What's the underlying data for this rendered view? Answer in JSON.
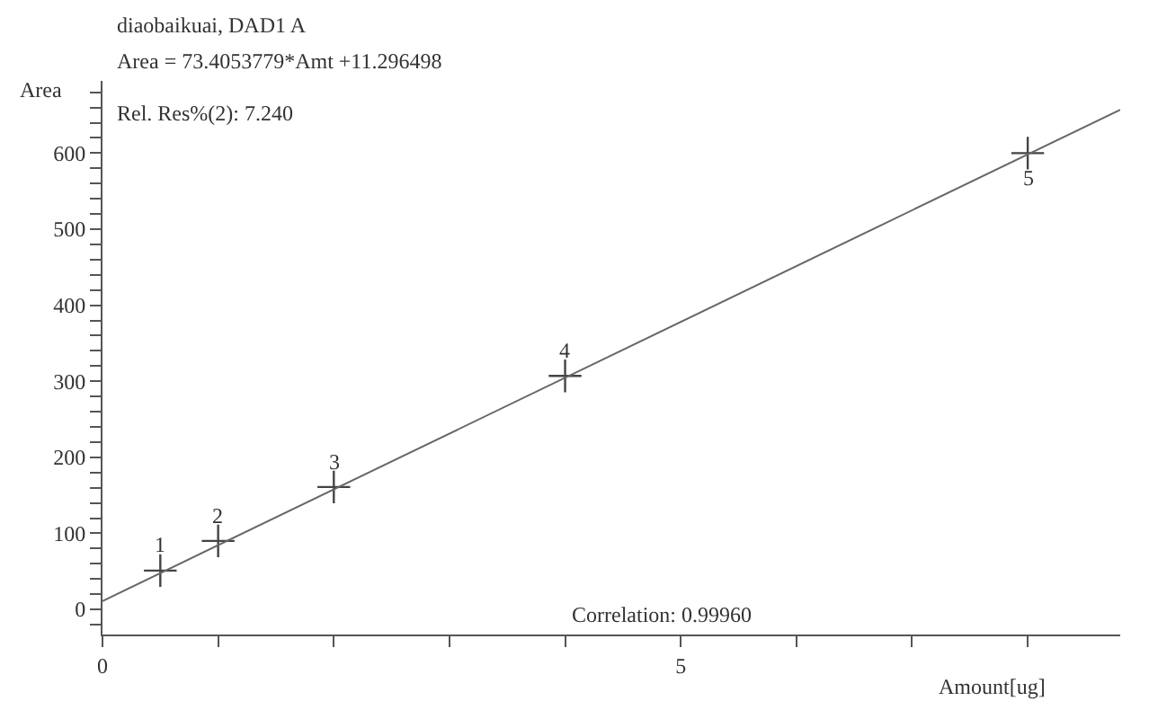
{
  "chart_data": {
    "type": "scatter",
    "title": "diaobaikuai, DAD1 A",
    "subtitle": "Area = 73.4053779*Amt +11.296498",
    "xlabel": "Amount[ug]",
    "ylabel": "Area",
    "x": [
      0.5,
      1,
      2,
      4,
      8
    ],
    "marker": "cross",
    "series": [
      {
        "color": "#444444",
        "values": [
          51,
          90,
          161,
          307,
          600
        ]
      },
      {
        "type": "line",
        "color": "#666666",
        "x": [
          0,
          8.8
        ],
        "values": [
          11,
          657
        ],
        "marker": "none",
        "line_style": "solid"
      }
    ],
    "xlim": [
      0,
      8.8
    ],
    "ylim": [
      -33,
      695
    ],
    "xticks": [
      0,
      {
        "value": 1,
        "label": null
      },
      {
        "value": 2,
        "label": null
      },
      {
        "value": 3,
        "label": null
      },
      {
        "value": 4,
        "label": null
      },
      5,
      {
        "value": 6,
        "label": null
      },
      {
        "value": 7,
        "label": null
      },
      {
        "value": 8,
        "label": null
      }
    ],
    "yticks": [
      {
        "value": -20,
        "label": null
      },
      0,
      {
        "value": 20,
        "label": null
      },
      {
        "value": 40,
        "label": null
      },
      {
        "value": 60,
        "label": null
      },
      {
        "value": 80,
        "label": null
      },
      100,
      {
        "value": 120,
        "label": null
      },
      {
        "value": 140,
        "label": null
      },
      {
        "value": 160,
        "label": null
      },
      {
        "value": 180,
        "label": null
      },
      200,
      {
        "value": 220,
        "label": null
      },
      {
        "value": 240,
        "label": null
      },
      {
        "value": 260,
        "label": null
      },
      {
        "value": 280,
        "label": null
      },
      300,
      {
        "value": 320,
        "label": null
      },
      {
        "value": 340,
        "label": null
      },
      {
        "value": 360,
        "label": null
      },
      {
        "value": 380,
        "label": null
      },
      400,
      {
        "value": 420,
        "label": null
      },
      {
        "value": 440,
        "label": null
      },
      {
        "value": 460,
        "label": null
      },
      {
        "value": 480,
        "label": null
      },
      500,
      {
        "value": 520,
        "label": null
      },
      {
        "value": 540,
        "label": null
      },
      {
        "value": 560,
        "label": null
      },
      {
        "value": 580,
        "label": null
      },
      600,
      {
        "value": 620,
        "label": null
      },
      {
        "value": 640,
        "label": null
      },
      {
        "value": 660,
        "label": null
      },
      {
        "value": 680,
        "label": null
      }
    ],
    "annotations": [
      "Rel. Res%(2): 7.240",
      "Correlation: 0.99960",
      {
        "text": "1",
        "x": 0.5,
        "y": 51
      },
      {
        "text": "2",
        "x": 1,
        "y": 90
      },
      {
        "text": "3",
        "x": 2,
        "y": 161
      },
      {
        "text": "4",
        "x": 4,
        "y": 307
      },
      {
        "text": "5",
        "x": 8,
        "y": 600
      }
    ]
  }
}
